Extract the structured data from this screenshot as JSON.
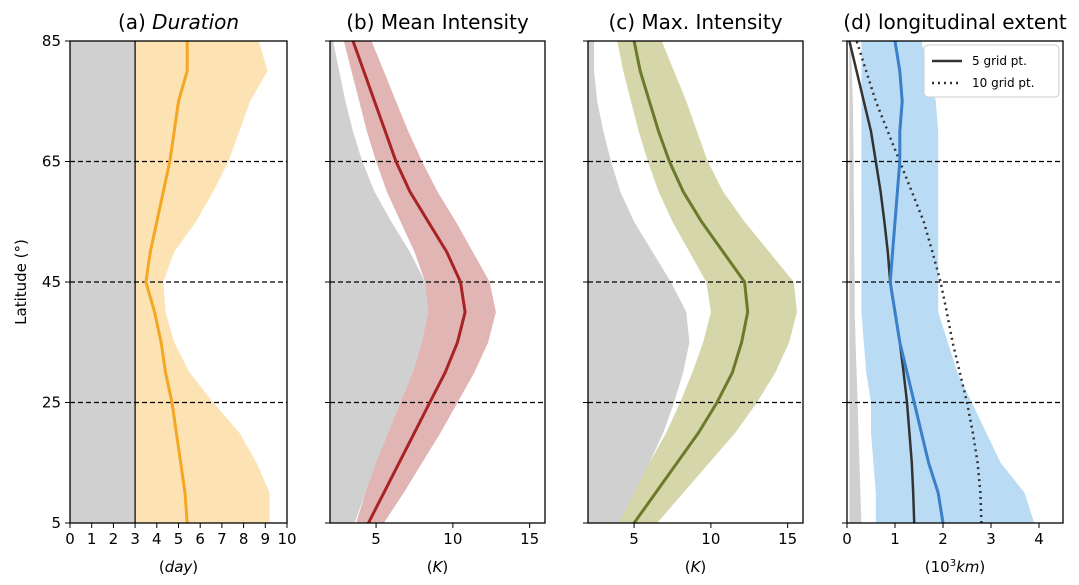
{
  "figure": {
    "ylabel": "Latitude (°)",
    "y_ticks": [
      5,
      25,
      45,
      65,
      85
    ],
    "ylim": [
      5,
      85
    ],
    "dashed_lines_at": [
      25,
      45,
      65
    ],
    "colors": {
      "grey_band": "#d0d0d0",
      "panel_a_line": "#f5a623",
      "panel_a_band": "#fde3b3",
      "panel_b_line": "#a82323",
      "panel_b_band": "#e2b5b5",
      "panel_c_line": "#6b7a2a",
      "panel_c_band": "#d5d6aa",
      "panel_d_line": "#3a7fc9",
      "panel_d_band": "#b9dbf3",
      "panel_d_black": "#333333"
    }
  },
  "chart_data": [
    {
      "type": "line",
      "label": "(a)",
      "title": "Duration",
      "xlabel": "(day)",
      "xlim": [
        0,
        10
      ],
      "x_ticks": [
        0,
        1,
        2,
        3,
        4,
        5,
        6,
        7,
        8,
        9,
        10
      ],
      "latitudes": [
        5,
        10,
        15,
        20,
        25,
        30,
        35,
        40,
        45,
        50,
        55,
        60,
        65,
        70,
        75,
        80,
        85
      ],
      "grey_region": [
        0,
        3
      ],
      "vertical_line_at": 3,
      "series": [
        {
          "role": "mean",
          "values": [
            5.4,
            5.3,
            5.1,
            4.9,
            4.7,
            4.4,
            4.2,
            3.9,
            3.5,
            3.7,
            4.0,
            4.3,
            4.6,
            4.8,
            5.0,
            5.4,
            5.4
          ]
        },
        {
          "role": "band_low",
          "values": [
            3.0,
            3.0,
            3.0,
            3.0,
            3.0,
            3.0,
            3.0,
            3.0,
            3.0,
            3.0,
            3.0,
            3.0,
            3.0,
            3.0,
            3.0,
            3.0,
            3.0
          ]
        },
        {
          "role": "band_high",
          "values": [
            9.2,
            9.2,
            8.6,
            7.8,
            6.6,
            5.5,
            4.8,
            4.4,
            4.3,
            4.8,
            5.8,
            6.6,
            7.3,
            7.8,
            8.3,
            9.1,
            8.7
          ]
        }
      ]
    },
    {
      "type": "line",
      "label": "(b)",
      "title": "Mean Intensity",
      "xlabel": "(K)",
      "xlim": [
        2,
        16
      ],
      "x_ticks": [
        5,
        10,
        15
      ],
      "latitudes": [
        5,
        10,
        15,
        20,
        25,
        30,
        35,
        40,
        45,
        50,
        55,
        60,
        65,
        70,
        75,
        80,
        85
      ],
      "series": [
        {
          "role": "mean",
          "values": [
            4.5,
            5.5,
            6.5,
            7.5,
            8.5,
            9.5,
            10.3,
            10.8,
            10.5,
            9.6,
            8.4,
            7.2,
            6.3,
            5.6,
            4.9,
            4.2,
            3.5
          ]
        },
        {
          "role": "band_low",
          "values": [
            3.7,
            4.3,
            5.0,
            5.8,
            6.6,
            7.4,
            8.0,
            8.4,
            8.2,
            7.5,
            6.6,
            5.7,
            5.0,
            4.4,
            3.9,
            3.4,
            2.9
          ]
        },
        {
          "role": "band_high",
          "values": [
            5.5,
            6.8,
            8.0,
            9.2,
            10.3,
            11.4,
            12.3,
            12.8,
            12.4,
            11.3,
            10.2,
            9.0,
            8.0,
            7.1,
            6.3,
            5.5,
            4.7
          ]
        },
        {
          "role": "grey_low",
          "values": [
            2,
            2,
            2,
            2,
            2,
            2,
            2,
            2,
            2,
            2,
            2,
            2,
            2,
            2,
            2,
            2,
            2
          ]
        },
        {
          "role": "grey_high",
          "values": [
            3.6,
            4.3,
            5.1,
            6.0,
            6.9,
            7.8,
            8.4,
            8.7,
            8.2,
            7.2,
            6.0,
            4.9,
            4.1,
            3.5,
            3.0,
            2.6,
            2.2
          ]
        }
      ]
    },
    {
      "type": "line",
      "label": "(c)",
      "title": "Max. Intensity",
      "xlabel": "(K)",
      "xlim": [
        2,
        16
      ],
      "x_ticks": [
        5,
        10,
        15
      ],
      "latitudes": [
        5,
        10,
        15,
        20,
        25,
        30,
        35,
        40,
        45,
        50,
        55,
        60,
        65,
        70,
        75,
        80,
        85
      ],
      "series": [
        {
          "role": "mean",
          "values": [
            5.0,
            6.4,
            7.8,
            9.2,
            10.4,
            11.4,
            12.0,
            12.4,
            12.2,
            10.8,
            9.4,
            8.2,
            7.3,
            6.6,
            6.0,
            5.4,
            5.0
          ]
        },
        {
          "role": "band_low",
          "values": [
            4.0,
            5.0,
            6.0,
            7.1,
            8.0,
            8.8,
            9.5,
            10.0,
            9.7,
            8.6,
            7.5,
            6.6,
            5.9,
            5.3,
            4.8,
            4.3,
            3.9
          ]
        },
        {
          "role": "band_high",
          "values": [
            6.5,
            8.2,
            9.9,
            11.6,
            13.0,
            14.2,
            15.1,
            15.6,
            15.4,
            13.8,
            12.2,
            10.8,
            9.8,
            9.1,
            8.4,
            7.6,
            6.8
          ]
        },
        {
          "role": "grey_low",
          "values": [
            2,
            2,
            2,
            2,
            2,
            2,
            2,
            2,
            2,
            2,
            2,
            2,
            2,
            2,
            2,
            2,
            2
          ]
        },
        {
          "role": "grey_high",
          "values": [
            4.2,
            5.1,
            6.0,
            6.9,
            7.6,
            8.2,
            8.6,
            8.4,
            7.4,
            6.2,
            5.0,
            4.1,
            3.5,
            3.0,
            2.6,
            2.4,
            2.4
          ]
        }
      ]
    },
    {
      "type": "line",
      "label": "(d)",
      "title": "longitudinal extent",
      "xlabel": "(10³km)",
      "xlim": [
        0,
        4.5
      ],
      "x_ticks": [
        0,
        1,
        2,
        3,
        4
      ],
      "latitudes": [
        5,
        10,
        15,
        20,
        25,
        30,
        35,
        40,
        45,
        50,
        55,
        60,
        65,
        70,
        75,
        80,
        85
      ],
      "legend": {
        "position": "top-right",
        "entries": [
          "5 grid pt.",
          "10 grid pt."
        ]
      },
      "series": [
        {
          "role": "mean",
          "values": [
            2.0,
            1.9,
            1.7,
            1.55,
            1.4,
            1.25,
            1.1,
            1.0,
            0.9,
            0.95,
            1.0,
            1.05,
            1.1,
            1.1,
            1.15,
            1.1,
            1.0
          ]
        },
        {
          "role": "band_low",
          "values": [
            0.6,
            0.6,
            0.55,
            0.5,
            0.5,
            0.4,
            0.35,
            0.3,
            0.3,
            0.3,
            0.3,
            0.3,
            0.3,
            0.3,
            0.3,
            0.3,
            0.3
          ]
        },
        {
          "role": "band_high",
          "values": [
            3.9,
            3.7,
            3.2,
            2.9,
            2.6,
            2.3,
            2.1,
            1.9,
            1.9,
            1.9,
            1.9,
            1.9,
            1.9,
            1.9,
            1.85,
            1.7,
            1.55
          ]
        },
        {
          "role": "grey_low",
          "values": [
            0.05,
            0.05,
            0.05,
            0.05,
            0.05,
            0.05,
            0.05,
            0.05,
            0.05,
            0.05,
            0.05,
            0.05,
            0.05,
            0.05,
            0.05,
            0.05,
            0.05
          ]
        },
        {
          "role": "grey_high",
          "values": [
            0.3,
            0.28,
            0.26,
            0.24,
            0.22,
            0.2,
            0.18,
            0.16,
            0.16,
            0.15,
            0.15,
            0.14,
            0.14,
            0.13,
            0.12,
            0.1,
            0.08
          ]
        },
        {
          "name": "5 grid pt.",
          "role": "black_solid",
          "values": [
            1.4,
            1.38,
            1.35,
            1.3,
            1.25,
            1.18,
            1.1,
            1.0,
            0.9,
            0.85,
            0.78,
            0.7,
            0.6,
            0.5,
            0.35,
            0.2,
            0.05
          ]
        },
        {
          "name": "10 grid pt.",
          "role": "black_dotted",
          "values": [
            2.8,
            2.78,
            2.72,
            2.62,
            2.5,
            2.35,
            2.2,
            2.08,
            1.95,
            1.78,
            1.6,
            1.35,
            1.1,
            0.85,
            0.6,
            0.4,
            0.2
          ]
        }
      ]
    }
  ]
}
